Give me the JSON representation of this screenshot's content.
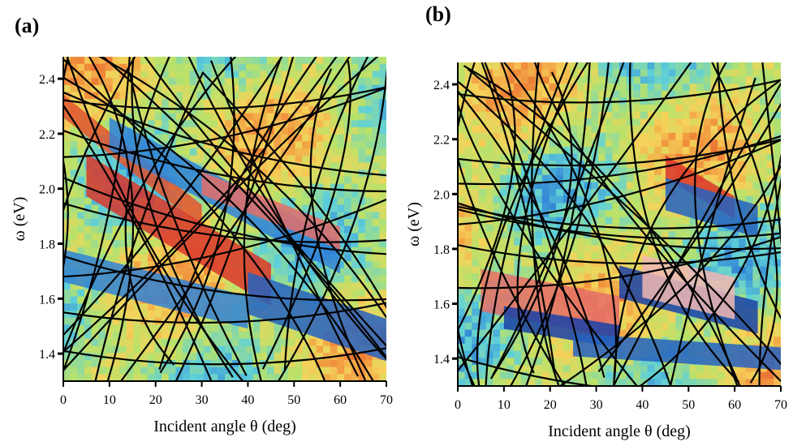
{
  "chart_data": [
    {
      "type": "heatmap",
      "panel_label": "(a)",
      "xlabel": "Incident angle θ (deg)",
      "ylabel": "ω (eV)",
      "xlim": [
        0,
        70
      ],
      "ylim": [
        1.3,
        2.48
      ],
      "xticks": [
        0,
        10,
        20,
        30,
        40,
        50,
        60,
        70
      ],
      "yticks": [
        1.4,
        1.6,
        1.8,
        2.0,
        2.2,
        2.4
      ],
      "xtick_labels": [
        "0",
        "10",
        "20",
        "30",
        "40",
        "50",
        "60",
        "70"
      ],
      "ytick_labels": [
        "1.4",
        "1.6",
        "1.8",
        "2.0",
        "2.2",
        "2.4"
      ],
      "colormap": [
        "#0a1f8f",
        "#2f7fd6",
        "#5fd0d8",
        "#b9e26a",
        "#f5d25a",
        "#f08a3a",
        "#d8322a",
        "#ffffff"
      ],
      "line_color": "#000000",
      "bands": [
        {
          "theta": [
            0,
            30
          ],
          "omega": [
            2.3,
            1.9
          ],
          "level": 0.8
        },
        {
          "theta": [
            10,
            60
          ],
          "omega": [
            2.2,
            1.75
          ],
          "level": 0.15
        },
        {
          "theta": [
            5,
            45
          ],
          "omega": [
            2.05,
            1.65
          ],
          "level": 0.85
        },
        {
          "theta": [
            30,
            60
          ],
          "omega": [
            2.02,
            1.82
          ],
          "level": 0.9
        },
        {
          "theta": [
            0,
            40
          ],
          "omega": [
            1.72,
            1.55
          ],
          "level": 0.15
        },
        {
          "theta": [
            40,
            70
          ],
          "omega": [
            1.62,
            1.45
          ],
          "level": 0.1
        }
      ]
    },
    {
      "type": "heatmap",
      "panel_label": "(b)",
      "xlabel": "Incident angle θ (deg)",
      "ylabel": "ω (eV)",
      "xlim": [
        0,
        70
      ],
      "ylim": [
        1.3,
        2.48
      ],
      "xticks": [
        0,
        10,
        20,
        30,
        40,
        50,
        60,
        70
      ],
      "yticks": [
        1.4,
        1.6,
        1.8,
        2.0,
        2.2,
        2.4
      ],
      "xtick_labels": [
        "0",
        "10",
        "20",
        "30",
        "40",
        "50",
        "60",
        "70"
      ],
      "ytick_labels": [
        "1.4",
        "1.6",
        "1.8",
        "2.0",
        "2.2",
        "2.4"
      ],
      "colormap": [
        "#0a1f8f",
        "#2f7fd6",
        "#5fd0d8",
        "#b9e26a",
        "#f5d25a",
        "#f08a3a",
        "#d8322a",
        "#ffffff"
      ],
      "line_color": "#000000",
      "bands": [
        {
          "theta": [
            45,
            60
          ],
          "omega": [
            2.1,
            1.95
          ],
          "level": 0.85
        },
        {
          "theta": [
            45,
            65
          ],
          "omega": [
            2.0,
            1.9
          ],
          "level": 0.1
        },
        {
          "theta": [
            5,
            35
          ],
          "omega": [
            1.65,
            1.55
          ],
          "level": 0.9
        },
        {
          "theta": [
            10,
            35
          ],
          "omega": [
            1.55,
            1.48
          ],
          "level": 0.05
        },
        {
          "theta": [
            35,
            65
          ],
          "omega": [
            1.68,
            1.55
          ],
          "level": 0.05
        },
        {
          "theta": [
            40,
            60
          ],
          "omega": [
            1.7,
            1.62
          ],
          "level": 0.95
        },
        {
          "theta": [
            25,
            70
          ],
          "omega": [
            1.45,
            1.4
          ],
          "level": 0.1
        }
      ]
    }
  ]
}
